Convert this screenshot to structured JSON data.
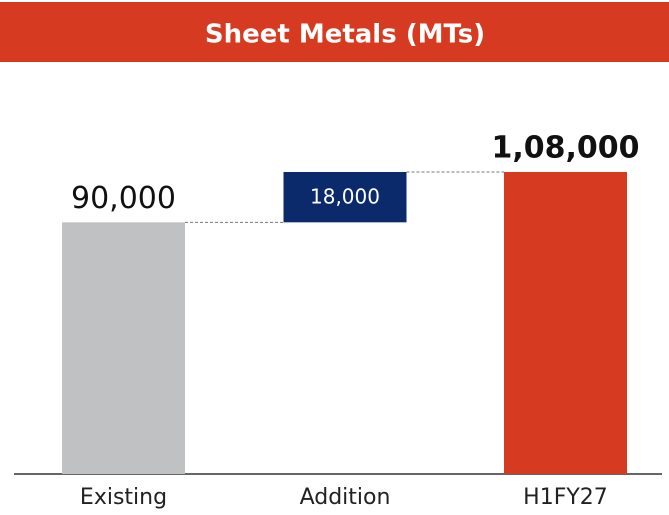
{
  "chart_data": {
    "type": "waterfall",
    "title": "Sheet Metals (MTs)",
    "categories": [
      "Existing",
      "Addition",
      "H1FY27"
    ],
    "values": [
      90000,
      18000,
      108000
    ],
    "value_labels": [
      "90,000",
      "18,000",
      "1,08,000"
    ],
    "measure": [
      "absolute",
      "relative",
      "total"
    ],
    "colors": [
      "#c0c1c3",
      "#0b2a6b",
      "#d63b22"
    ],
    "ylim": [
      0,
      108000
    ]
  }
}
